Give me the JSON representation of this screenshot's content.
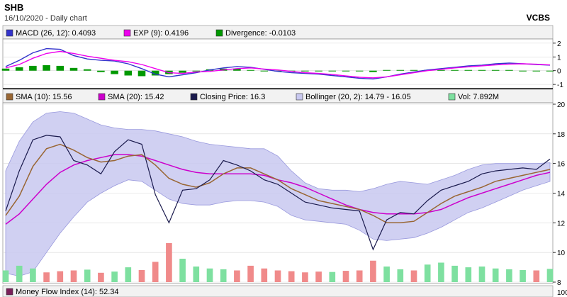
{
  "header": {
    "symbol": "SHB",
    "subtitle": "16/10/2020 - Daily chart",
    "brand": "VCBS"
  },
  "colors": {
    "panel_bg": "#ffffff",
    "legend_bg": "#f2f2f2",
    "grid": "#d9d9d9",
    "macd": "#3333cc",
    "exp": "#ee00ee",
    "divergence": "#009900",
    "sma10": "#996633",
    "sma20": "#cc00cc",
    "closing": "#1a1a4d",
    "bollinger_fill": "#c8c8f0",
    "bollinger_border": "#9999dd",
    "vol_up": "#7ee0a0",
    "vol_down": "#f08a8a",
    "mfi": "#7a1f5a"
  },
  "macd_panel": {
    "legend": [
      {
        "swatch": "#3333cc",
        "text": "MACD (26, 12): 0.4093"
      },
      {
        "swatch": "#ee00ee",
        "text": "EXP (9): 0.4196"
      },
      {
        "swatch": "#009900",
        "text": "Divergence: -0.0103"
      }
    ],
    "y_ticks": [
      "2",
      "1",
      "0",
      "-1"
    ]
  },
  "price_panel": {
    "legend": [
      {
        "swatch": "#996633",
        "text": "SMA (10): 15.56"
      },
      {
        "swatch": "#cc00cc",
        "text": "SMA (20): 15.42"
      },
      {
        "swatch": "#1a1a4d",
        "text": "Closing Price: 16.3"
      },
      {
        "swatch": "#c8c8f0",
        "text": "Bollinger (20, 2): 14.79 - 16.05"
      },
      {
        "swatch": "#7ee0a0",
        "text": "Vol: 7.892M"
      }
    ],
    "y_ticks": [
      "20",
      "18",
      "16",
      "14",
      "12",
      "10",
      "8"
    ]
  },
  "mfi_panel": {
    "legend": [
      {
        "swatch": "#7a1f5a",
        "text": "Money Flow Index (14): 52.34"
      }
    ],
    "y_ticks": [
      "100"
    ]
  },
  "chart_data": [
    {
      "type": "line",
      "title": "MACD",
      "ylim": [
        -1.2,
        2.2
      ],
      "series": [
        {
          "name": "MACD (26, 12)",
          "values": [
            0.3,
            0.75,
            1.3,
            1.6,
            1.55,
            1.1,
            0.85,
            0.75,
            0.7,
            0.5,
            0.15,
            -0.25,
            -0.45,
            -0.3,
            -0.15,
            0.05,
            0.2,
            0.3,
            0.25,
            0.1,
            -0.05,
            -0.15,
            -0.2,
            -0.25,
            -0.35,
            -0.45,
            -0.55,
            -0.6,
            -0.45,
            -0.25,
            -0.1,
            0.05,
            0.15,
            0.25,
            0.35,
            0.4,
            0.5,
            0.55,
            0.5,
            0.45,
            0.4
          ]
        },
        {
          "name": "EXP (9)",
          "values": [
            0.2,
            0.45,
            0.9,
            1.25,
            1.4,
            1.25,
            1.05,
            0.9,
            0.75,
            0.65,
            0.45,
            0.15,
            -0.15,
            -0.2,
            -0.1,
            -0.05,
            0.05,
            0.15,
            0.2,
            0.12,
            0.05,
            -0.05,
            -0.15,
            -0.2,
            -0.28,
            -0.38,
            -0.48,
            -0.52,
            -0.45,
            -0.3,
            -0.15,
            0.0,
            0.1,
            0.2,
            0.28,
            0.35,
            0.42,
            0.48,
            0.5,
            0.47,
            0.42
          ]
        }
      ],
      "divergence": [
        0.15,
        0.25,
        0.35,
        0.4,
        0.35,
        0.2,
        0.1,
        -0.1,
        -0.25,
        -0.35,
        -0.4,
        -0.35,
        -0.25,
        -0.15,
        0.0,
        0.1,
        0.15,
        0.15,
        0.05,
        -0.05,
        -0.05,
        -0.05,
        -0.05,
        -0.05,
        -0.05,
        -0.05,
        -0.05,
        -0.1,
        0.05,
        0.05,
        0.05,
        0.05,
        0.05,
        0.05,
        0.05,
        0.05,
        0.05,
        0.05,
        0.0,
        -0.01,
        -0.01
      ]
    },
    {
      "type": "line",
      "title": "Price",
      "ylim": [
        8,
        20
      ],
      "series": [
        {
          "name": "Closing Price",
          "values": [
            12.8,
            15.5,
            17.6,
            17.9,
            17.8,
            16.2,
            15.9,
            15.3,
            16.8,
            17.6,
            17.3,
            13.9,
            12.0,
            14.2,
            14.3,
            14.9,
            16.2,
            15.9,
            15.5,
            14.9,
            14.6,
            14.0,
            13.4,
            13.2,
            13.0,
            12.9,
            12.8,
            10.2,
            12.2,
            12.7,
            12.6,
            13.5,
            14.2,
            14.5,
            14.8,
            15.3,
            15.5,
            15.6,
            15.7,
            15.6,
            16.3
          ]
        },
        {
          "name": "SMA (10)",
          "values": [
            12.5,
            13.8,
            15.8,
            17.0,
            17.3,
            16.9,
            16.4,
            16.1,
            16.2,
            16.5,
            16.6,
            15.9,
            15.0,
            14.6,
            14.4,
            14.7,
            15.3,
            15.7,
            15.7,
            15.3,
            14.9,
            14.3,
            13.9,
            13.5,
            13.3,
            13.1,
            12.9,
            12.5,
            12.0,
            12.0,
            12.1,
            12.7,
            13.3,
            13.8,
            14.1,
            14.4,
            14.8,
            15.0,
            15.2,
            15.4,
            15.6
          ]
        },
        {
          "name": "SMA (20)",
          "values": [
            11.9,
            12.6,
            13.6,
            14.6,
            15.4,
            15.9,
            16.2,
            16.4,
            16.6,
            16.6,
            16.5,
            16.2,
            15.9,
            15.6,
            15.4,
            15.3,
            15.3,
            15.3,
            15.3,
            15.2,
            14.9,
            14.7,
            14.4,
            14.0,
            13.6,
            13.2,
            12.9,
            12.7,
            12.6,
            12.6,
            12.6,
            12.7,
            12.9,
            13.3,
            13.7,
            14.0,
            14.3,
            14.6,
            14.9,
            15.2,
            15.4
          ]
        }
      ],
      "bollinger_upper": [
        15.5,
        17.5,
        18.8,
        19.4,
        19.5,
        19.4,
        19.0,
        18.6,
        18.4,
        18.3,
        18.3,
        18.2,
        18.0,
        17.8,
        17.5,
        17.3,
        17.2,
        17.1,
        17.0,
        17.0,
        16.5,
        15.5,
        14.7,
        14.3,
        14.2,
        14.2,
        14.1,
        14.3,
        14.6,
        14.8,
        14.7,
        14.6,
        14.9,
        15.2,
        15.6,
        15.9,
        16.0,
        16.0,
        16.0,
        16.0,
        16.05
      ],
      "bollinger_lower": [
        8.6,
        8.4,
        8.7,
        10.0,
        11.3,
        12.4,
        13.4,
        14.0,
        14.5,
        14.9,
        14.8,
        14.2,
        13.6,
        13.3,
        13.2,
        13.2,
        13.4,
        13.5,
        13.5,
        13.4,
        13.1,
        12.5,
        12.2,
        12.1,
        12.0,
        11.9,
        11.5,
        10.9,
        10.8,
        10.9,
        11.0,
        11.3,
        11.7,
        12.2,
        12.7,
        13.0,
        13.4,
        13.8,
        14.2,
        14.5,
        14.79
      ],
      "volume": [
        0.3,
        0.42,
        0.35,
        0.25,
        0.28,
        0.3,
        0.32,
        0.24,
        0.27,
        0.38,
        0.31,
        0.52,
        1.0,
        0.6,
        0.4,
        0.35,
        0.33,
        0.3,
        0.42,
        0.35,
        0.3,
        0.28,
        0.25,
        0.27,
        0.26,
        0.29,
        0.3,
        0.55,
        0.4,
        0.33,
        0.3,
        0.45,
        0.5,
        0.42,
        0.38,
        0.4,
        0.35,
        0.33,
        0.31,
        0.3,
        0.34
      ],
      "volume_up": [
        true,
        true,
        true,
        false,
        false,
        false,
        true,
        false,
        true,
        true,
        false,
        false,
        false,
        true,
        true,
        true,
        true,
        false,
        false,
        false,
        false,
        false,
        false,
        false,
        true,
        false,
        false,
        false,
        true,
        true,
        false,
        true,
        true,
        true,
        true,
        true,
        true,
        true,
        true,
        false,
        true
      ]
    }
  ]
}
